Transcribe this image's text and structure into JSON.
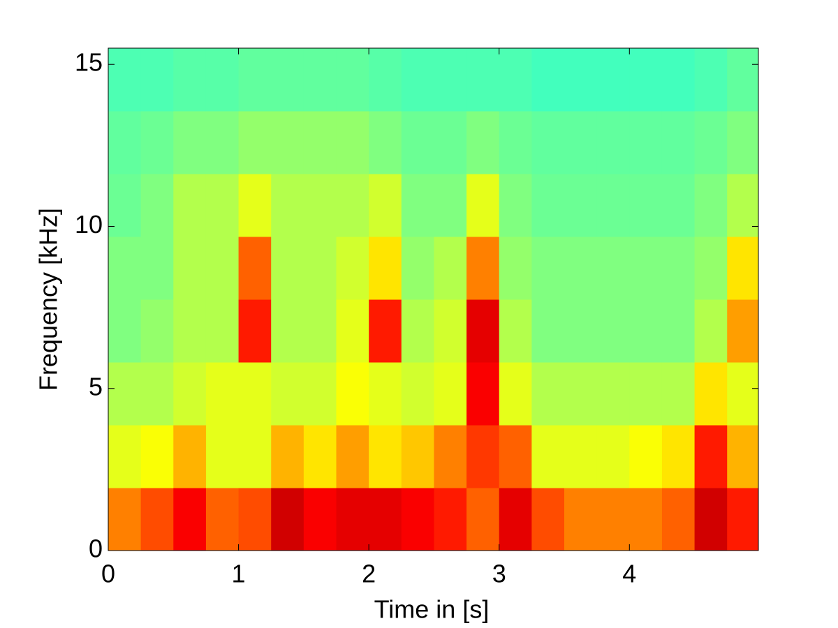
{
  "chart_data": {
    "type": "spectrogram",
    "colormap": "jet",
    "xlabel": "Time in [s]",
    "ylabel": "Frequency [kHz]",
    "xlim": [
      0,
      4.99
    ],
    "ylim": [
      0,
      15.5
    ],
    "xticks": [
      0,
      1,
      2,
      3,
      4
    ],
    "yticks": [
      0,
      5,
      10,
      15
    ],
    "x": [
      0,
      0.25,
      0.5,
      0.75,
      1,
      1.25,
      1.5,
      1.75,
      2,
      2.25,
      2.5,
      2.75,
      3,
      3.25,
      3.5,
      3.75,
      4,
      4.25,
      4.5,
      4.75
    ],
    "y": [
      0,
      1.9375,
      3.875,
      5.8125,
      7.75,
      9.6875,
      11.625,
      13.5625
    ],
    "values": [
      [
        0.75,
        0.8,
        0.88,
        0.78,
        0.8,
        0.92,
        0.88,
        0.9,
        0.9,
        0.88,
        0.85,
        0.78,
        0.9,
        0.8,
        0.75,
        0.75,
        0.75,
        0.78,
        0.92,
        0.85
      ],
      [
        0.6,
        0.62,
        0.7,
        0.6,
        0.6,
        0.7,
        0.65,
        0.72,
        0.65,
        0.68,
        0.75,
        0.82,
        0.78,
        0.6,
        0.6,
        0.6,
        0.62,
        0.65,
        0.85,
        0.7
      ],
      [
        0.55,
        0.55,
        0.58,
        0.6,
        0.6,
        0.58,
        0.58,
        0.62,
        0.6,
        0.58,
        0.6,
        0.88,
        0.6,
        0.55,
        0.55,
        0.55,
        0.55,
        0.55,
        0.65,
        0.6
      ],
      [
        0.5,
        0.52,
        0.55,
        0.55,
        0.85,
        0.55,
        0.55,
        0.6,
        0.85,
        0.55,
        0.58,
        0.9,
        0.55,
        0.5,
        0.5,
        0.5,
        0.5,
        0.5,
        0.55,
        0.72
      ],
      [
        0.5,
        0.5,
        0.55,
        0.55,
        0.78,
        0.55,
        0.55,
        0.58,
        0.65,
        0.52,
        0.55,
        0.75,
        0.52,
        0.5,
        0.5,
        0.5,
        0.5,
        0.5,
        0.52,
        0.65
      ],
      [
        0.48,
        0.5,
        0.55,
        0.55,
        0.6,
        0.55,
        0.55,
        0.55,
        0.58,
        0.5,
        0.5,
        0.6,
        0.5,
        0.48,
        0.48,
        0.48,
        0.48,
        0.48,
        0.5,
        0.55
      ],
      [
        0.47,
        0.48,
        0.5,
        0.5,
        0.52,
        0.52,
        0.52,
        0.52,
        0.5,
        0.48,
        0.48,
        0.5,
        0.48,
        0.47,
        0.47,
        0.47,
        0.47,
        0.47,
        0.48,
        0.5
      ],
      [
        0.45,
        0.45,
        0.46,
        0.46,
        0.47,
        0.47,
        0.47,
        0.47,
        0.46,
        0.45,
        0.45,
        0.45,
        0.45,
        0.44,
        0.44,
        0.44,
        0.44,
        0.44,
        0.45,
        0.47
      ]
    ]
  }
}
